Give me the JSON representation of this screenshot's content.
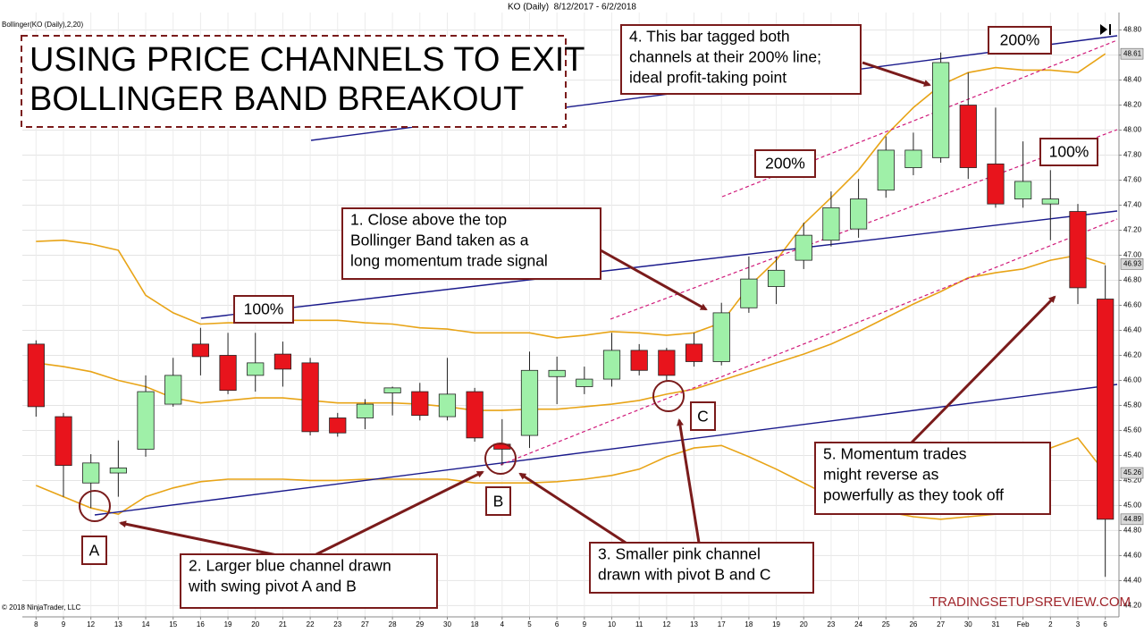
{
  "chart_data": {
    "type": "candlestick",
    "header": "KO (Daily)  8/12/2017 - 6/2/2018",
    "indicator_label": "Bollinger(KO (Daily),2,20)",
    "copyright": "© 2018 NinjaTrader, LLC",
    "watermark": "TRADINGSETUPSREVIEW.COM",
    "title_lines": [
      "USING PRICE CHANNELS TO EXIT",
      "BOLLINGER BAND BREAKOUT"
    ],
    "annotations": [
      {
        "lines": [
          "1. Close above the top",
          "Bollinger Band taken as a",
          "long momentum trade signal"
        ]
      },
      {
        "lines": [
          "2. Larger blue channel drawn",
          "with swing pivot A and B"
        ]
      },
      {
        "lines": [
          "3. Smaller pink channel",
          "drawn with pivot B and C"
        ]
      },
      {
        "lines": [
          "4. This bar tagged both",
          "channels at their 200% line;",
          "ideal profit-taking point"
        ]
      },
      {
        "lines": [
          "5. Momentum trades",
          "might reverse as",
          "powerfully as they took off"
        ]
      }
    ],
    "channel_labels": [
      "100%",
      "200%",
      "200%",
      "100%"
    ],
    "pivot_labels": [
      "A",
      "B",
      "C"
    ],
    "categories": [
      "8",
      "9",
      "12",
      "13",
      "14",
      "15",
      "16",
      "19",
      "20",
      "21",
      "22",
      "23",
      "27",
      "28",
      "29",
      "30",
      "18",
      "4",
      "5",
      "6",
      "9",
      "10",
      "11",
      "12",
      "13",
      "17",
      "18",
      "19",
      "20",
      "23",
      "24",
      "25",
      "26",
      "27",
      "30",
      "31",
      "Feb",
      "2",
      "3",
      "6"
    ],
    "open": [
      46.29,
      45.71,
      45.18,
      45.26,
      45.45,
      45.81,
      46.29,
      46.2,
      46.04,
      46.21,
      46.14,
      45.7,
      45.7,
      45.9,
      45.91,
      45.71,
      45.91,
      45.49,
      45.56,
      46.03,
      45.95,
      46.01,
      46.24,
      46.24,
      46.29,
      46.15,
      46.58,
      46.75,
      46.96,
      47.12,
      47.21,
      47.52,
      47.7,
      47.78,
      48.2,
      47.73,
      47.45,
      47.41,
      47.35,
      46.65
    ],
    "high": [
      46.32,
      45.74,
      45.41,
      45.52,
      46.04,
      46.18,
      46.42,
      46.38,
      46.38,
      46.31,
      46.18,
      45.74,
      45.85,
      45.95,
      45.98,
      46.18,
      45.94,
      45.69,
      46.23,
      46.19,
      46.11,
      46.38,
      46.29,
      46.26,
      46.38,
      46.62,
      46.99,
      46.99,
      47.26,
      47.51,
      47.61,
      47.95,
      47.98,
      48.62,
      48.46,
      48.18,
      47.91,
      47.68,
      47.41,
      46.92
    ],
    "low": [
      45.71,
      45.07,
      44.98,
      45.07,
      45.39,
      45.79,
      46.04,
      45.89,
      45.91,
      45.95,
      45.56,
      45.55,
      45.61,
      45.72,
      45.68,
      45.68,
      45.51,
      45.32,
      45.46,
      45.81,
      45.89,
      45.95,
      46.04,
      46.0,
      46.11,
      46.12,
      46.54,
      46.61,
      46.89,
      47.07,
      47.14,
      47.46,
      47.64,
      47.74,
      47.61,
      47.38,
      47.38,
      47.12,
      46.61,
      44.43
    ],
    "close": [
      45.79,
      45.32,
      45.34,
      45.3,
      45.91,
      46.04,
      46.19,
      45.92,
      46.14,
      46.09,
      45.59,
      45.58,
      45.81,
      45.94,
      45.72,
      45.89,
      45.54,
      45.45,
      46.08,
      46.08,
      46.01,
      46.24,
      46.08,
      46.04,
      46.15,
      46.54,
      46.81,
      46.88,
      47.16,
      47.38,
      47.45,
      47.84,
      47.84,
      48.54,
      47.7,
      47.41,
      47.59,
      47.45,
      46.74,
      44.89
    ],
    "up_color": "#9ff0a8",
    "down_color": "#e8141c",
    "bands": [
      {
        "color": "#e8a417",
        "values": [
          47.11,
          47.12,
          47.09,
          47.04,
          46.68,
          46.54,
          46.45,
          46.46,
          46.46,
          46.48,
          46.48,
          46.48,
          46.46,
          46.45,
          46.42,
          46.41,
          46.38,
          46.38,
          46.38,
          46.34,
          46.36,
          46.39,
          46.38,
          46.36,
          46.38,
          46.46,
          46.75,
          46.96,
          47.25,
          47.46,
          47.68,
          47.96,
          48.18,
          48.36,
          48.46,
          48.5,
          48.48,
          48.48,
          48.46,
          48.61
        ]
      },
      {
        "color": "#e8a417",
        "values": [
          46.14,
          46.11,
          46.07,
          46.0,
          45.95,
          45.86,
          45.82,
          45.84,
          45.86,
          45.86,
          45.84,
          45.82,
          45.82,
          45.82,
          45.81,
          45.79,
          45.76,
          45.76,
          45.77,
          45.77,
          45.79,
          45.81,
          45.84,
          45.89,
          45.93,
          46.0,
          46.07,
          46.14,
          46.21,
          46.29,
          46.39,
          46.5,
          46.61,
          46.71,
          46.82,
          46.86,
          46.89,
          46.96,
          47.0,
          46.93
        ]
      },
      {
        "color": "#e8a417",
        "values": [
          45.16,
          45.07,
          44.98,
          44.93,
          45.07,
          45.14,
          45.19,
          45.21,
          45.21,
          45.21,
          45.2,
          45.2,
          45.21,
          45.21,
          45.21,
          45.21,
          45.18,
          45.18,
          45.18,
          45.19,
          45.21,
          45.24,
          45.29,
          45.39,
          45.46,
          45.48,
          45.39,
          45.29,
          45.18,
          45.07,
          45.0,
          44.95,
          44.91,
          44.89,
          44.91,
          44.93,
          44.96,
          45.46,
          45.54,
          45.26
        ]
      }
    ],
    "price_markers": [
      48.61,
      46.93,
      45.26,
      44.89
    ],
    "ylim": [
      44.11,
      48.94
    ],
    "yticks": [
      {
        "value": 48.8,
        "label": "48.80"
      },
      {
        "value": 48.6,
        "label": "48.60"
      },
      {
        "value": 48.4,
        "label": "48.40"
      },
      {
        "value": 48.2,
        "label": "48.20"
      },
      {
        "value": 48.0,
        "label": "48.00"
      },
      {
        "value": 47.8,
        "label": "47.80"
      },
      {
        "value": 47.6,
        "label": "47.60"
      },
      {
        "value": 47.4,
        "label": "47.40"
      },
      {
        "value": 47.2,
        "label": "47.20"
      },
      {
        "value": 47.0,
        "label": "47.00"
      },
      {
        "value": 46.8,
        "label": "46.80"
      },
      {
        "value": 46.6,
        "label": "46.60"
      },
      {
        "value": 46.4,
        "label": "46.40"
      },
      {
        "value": 46.2,
        "label": "46.20"
      },
      {
        "value": 46.0,
        "label": "46.00"
      },
      {
        "value": 45.8,
        "label": "45.80"
      },
      {
        "value": 45.6,
        "label": "45.60"
      },
      {
        "value": 45.4,
        "label": "45.40"
      },
      {
        "value": 45.2,
        "label": "45.20"
      },
      {
        "value": 45.0,
        "label": "45.00"
      },
      {
        "value": 44.8,
        "label": "44.80"
      },
      {
        "value": 44.6,
        "label": "44.60"
      },
      {
        "value": 44.4,
        "label": "44.40"
      },
      {
        "value": 44.2,
        "label": "44.20"
      }
    ],
    "grid": true
  }
}
